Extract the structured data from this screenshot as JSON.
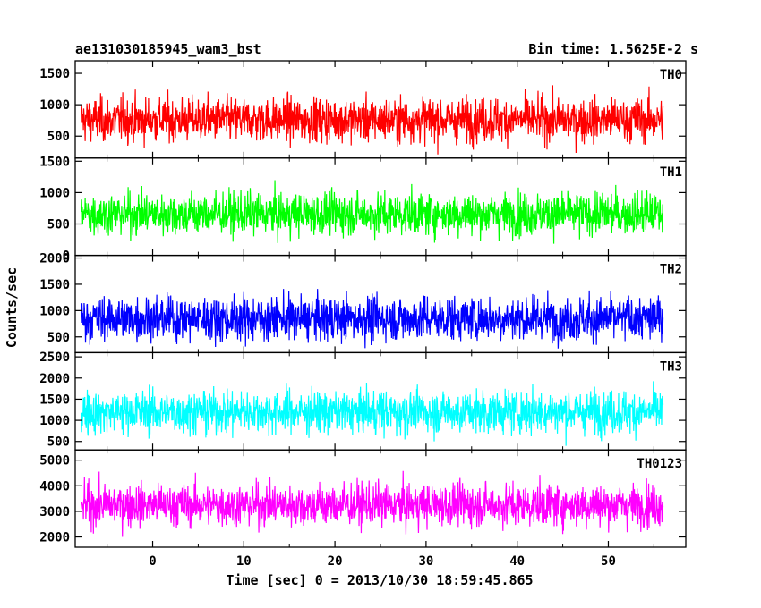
{
  "chart_data": {
    "type": "line",
    "title_left": "ae131030185945_wam3_bst",
    "title_right": "Bin time: 1.5625E-2 s",
    "xlabel": "Time [sec] 0 = 2013/10/30 18:59:45.865",
    "ylabel": "Counts/sec",
    "xlim": [
      -8.5,
      58.5
    ],
    "x_ticks": [
      0,
      10,
      20,
      30,
      40,
      50
    ],
    "x_range": [
      -7.8,
      56.0
    ],
    "bin_time": 0.015625,
    "panels": [
      {
        "name": "TH0",
        "color": "#ff0000",
        "ylim": [
          150,
          1700
        ],
        "y_ticks": [
          500,
          1000,
          1500
        ],
        "mean": 760,
        "low": 170,
        "high": 1650
      },
      {
        "name": "TH1",
        "color": "#00ff00",
        "ylim": [
          0,
          1550
        ],
        "y_ticks": [
          0,
          500,
          1000,
          1500
        ],
        "mean": 660,
        "low": 80,
        "high": 1500
      },
      {
        "name": "TH2",
        "color": "#0000ff",
        "ylim": [
          200,
          2050
        ],
        "y_ticks": [
          500,
          1000,
          1500,
          2000
        ],
        "mean": 850,
        "low": 220,
        "high": 2000
      },
      {
        "name": "TH3",
        "color": "#00ffff",
        "ylim": [
          300,
          2600
        ],
        "y_ticks": [
          500,
          1000,
          1500,
          2000,
          2500
        ],
        "mean": 1200,
        "low": 350,
        "high": 2500
      },
      {
        "name": "TH0123",
        "color": "#ff00ff",
        "ylim": [
          1600,
          5400
        ],
        "y_ticks": [
          2000,
          3000,
          4000,
          5000
        ],
        "mean": 3250,
        "low": 1700,
        "high": 5200
      }
    ]
  }
}
